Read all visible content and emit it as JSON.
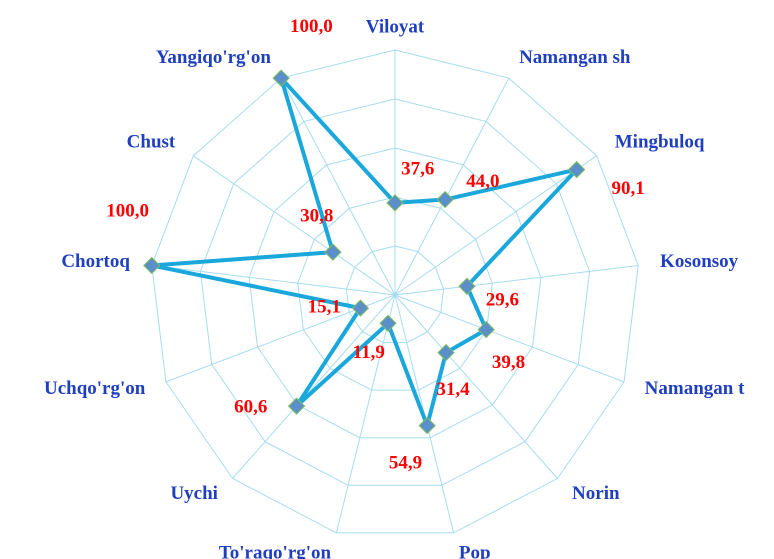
{
  "chart_data": {
    "type": "radar",
    "categories": [
      "Viloyat",
      "Namangan sh",
      "Mingbuloq",
      "Kosonsoy",
      "Namangan t",
      "Norin",
      "Pop",
      "To'raqo'rg'on",
      "Uychi",
      "Uchqo'rg'on",
      "Chortoq",
      "Chust",
      "Yangiqo'rg'on"
    ],
    "values": [
      37.6,
      44.0,
      90.1,
      29.6,
      39.8,
      31.4,
      54.9,
      11.9,
      60.6,
      15.1,
      100.0,
      30.8,
      100.0
    ],
    "value_labels": [
      "37,6",
      "44,0",
      "90,1",
      "29,6",
      "39,8",
      "31,4",
      "54,9",
      "11,9",
      "60,6",
      "15,1",
      "100,0",
      "30,8",
      "100,0"
    ],
    "color": "#1aa7dc",
    "marker_color": "#5b8fc9",
    "grid_color": "#a6dcef",
    "ylim": [
      0,
      100
    ],
    "yticks": [
      0,
      20,
      40,
      60,
      80,
      100
    ],
    "grid": true
  }
}
